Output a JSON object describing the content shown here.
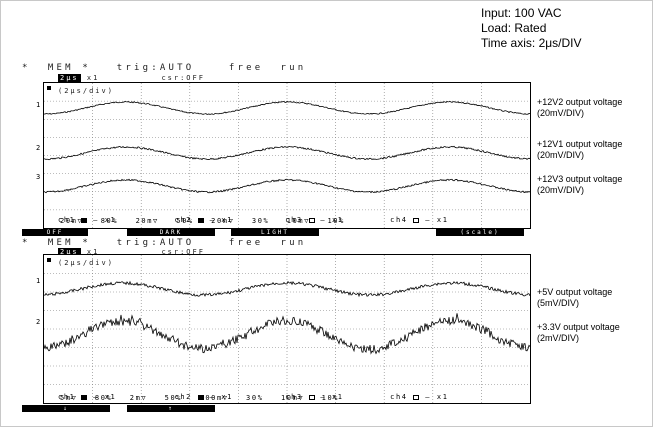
{
  "conditions": {
    "input": "Input: 100 VAC",
    "load": "Load: Rated",
    "time_axis": "Time axis: 2μs/DIV"
  },
  "scope1": {
    "header_line1": "*  MEM *   trig:AUTO    free  run",
    "header_timebase": "2μs",
    "header_line2": "x1          csr:OFF",
    "timediv": "(2μs/div)",
    "markers": [
      "1",
      "2",
      "3"
    ],
    "labels": [
      {
        "title": "+12V2 output voltage",
        "scale": "(20mV/DIV)"
      },
      {
        "title": "+12V1 output voltage",
        "scale": "(20mV/DIV)"
      },
      {
        "title": "+12V3 output voltage",
        "scale": "(20mV/DIV)"
      }
    ],
    "channel_row1": {
      "ch1": "ch1",
      "ch1_rest": "– x1",
      "ch2": "ch2",
      "ch2_rest": "– x1",
      "ch3": "ch3",
      "ch3_rest": "– x1",
      "ch4": "ch4",
      "ch4_rest": "– x1"
    },
    "channel_row2": "20m▽   80%   20m▽   50%   20m▽   30%   10m▽   10%",
    "softkeys": [
      "OFF",
      "DARK",
      "LIGHT",
      "(scale)"
    ]
  },
  "scope2": {
    "header_line1": "*  MEM *   trig:AUTO    free  run",
    "header_timebase": "2μs",
    "header_line2": "x1          csr:OFF",
    "timediv": "(2μs/div)",
    "markers": [
      "1",
      "2"
    ],
    "labels": [
      {
        "title": "+5V output voltage",
        "scale": "(5mV/DIV)"
      },
      {
        "title": "+3.3V output voltage",
        "scale": "(2mV/DIV)"
      }
    ],
    "channel_row1": {
      "ch1": "ch1",
      "ch1_rest": "– x1",
      "ch2": "ch2",
      "ch2_rest": "– x1",
      "ch3": "ch3",
      "ch3_rest": "– x1",
      "ch4": "ch4",
      "ch4_rest": "– x1"
    },
    "channel_row2": "5m▽   80%   2m▽   50%   100m▽   30%   10m▽   10%",
    "softkeys": [
      "↓",
      "↑"
    ]
  },
  "colors": {
    "trace": "#000000",
    "grid": "#7a7a7a",
    "softkey_bg": "#000000"
  }
}
